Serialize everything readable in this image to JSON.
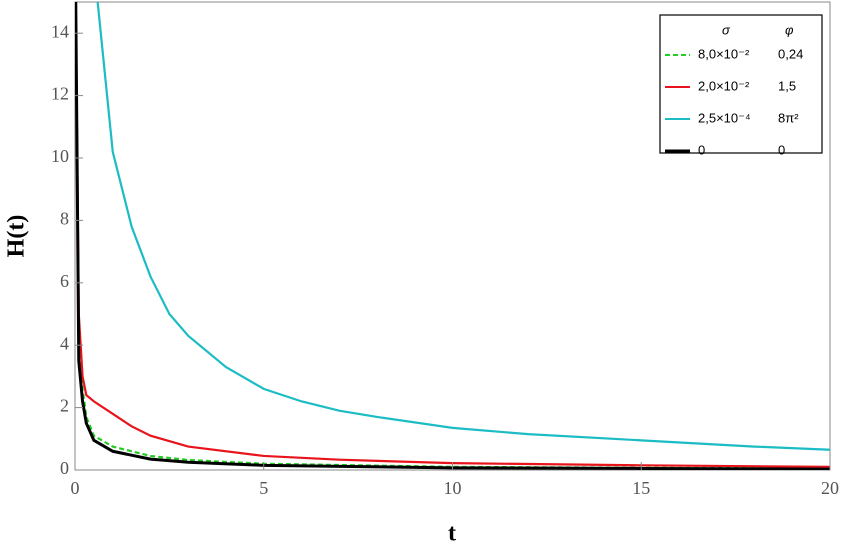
{
  "chart_data": {
    "type": "line",
    "xlabel": "t",
    "ylabel": "H(t)",
    "xlim": [
      0,
      20
    ],
    "ylim": [
      0,
      15
    ],
    "xticks": [
      0,
      5,
      10,
      15,
      20
    ],
    "yticks": [
      0,
      2,
      4,
      6,
      8,
      10,
      12,
      14
    ],
    "legend_header": [
      "σ",
      "φ"
    ],
    "legend_position": "upper right",
    "series": [
      {
        "name": "8,0×10⁻²",
        "phi": "0,24",
        "color": "#22cc22",
        "dash": true,
        "x": [
          0.02,
          0.1,
          0.2,
          0.3,
          0.5,
          1,
          2,
          3,
          5,
          10,
          15,
          20
        ],
        "values": [
          15,
          4,
          2.6,
          1.7,
          1.1,
          0.75,
          0.45,
          0.32,
          0.2,
          0.1,
          0.07,
          0.05
        ]
      },
      {
        "name": "2,0×10⁻²",
        "phi": "1,5",
        "color": "#e8141c",
        "dash": false,
        "x": [
          0.02,
          0.1,
          0.2,
          0.3,
          0.5,
          1,
          1.5,
          2,
          3,
          5,
          7,
          10,
          15,
          20
        ],
        "values": [
          15,
          5,
          3,
          2.4,
          2.2,
          1.8,
          1.4,
          1.1,
          0.75,
          0.45,
          0.33,
          0.22,
          0.15,
          0.1
        ]
      },
      {
        "name": "2,5×10⁻⁴",
        "phi": "8π²",
        "color": "#1cbcc4",
        "dash": false,
        "x": [
          0.6,
          1,
          1.5,
          2,
          2.5,
          3,
          4,
          5,
          6,
          7,
          8,
          10,
          12,
          15,
          18,
          20
        ],
        "values": [
          15,
          10.2,
          7.8,
          6.2,
          5.0,
          4.3,
          3.3,
          2.6,
          2.2,
          1.9,
          1.7,
          1.35,
          1.15,
          0.95,
          0.75,
          0.65
        ]
      },
      {
        "name": "0",
        "phi": "0",
        "color": "#000000",
        "dash": false,
        "x": [
          0.02,
          0.1,
          0.2,
          0.3,
          0.5,
          1,
          2,
          3,
          5,
          10,
          15,
          20
        ],
        "values": [
          15,
          3.5,
          2.2,
          1.5,
          0.95,
          0.6,
          0.35,
          0.25,
          0.15,
          0.07,
          0.05,
          0.03
        ]
      }
    ]
  }
}
